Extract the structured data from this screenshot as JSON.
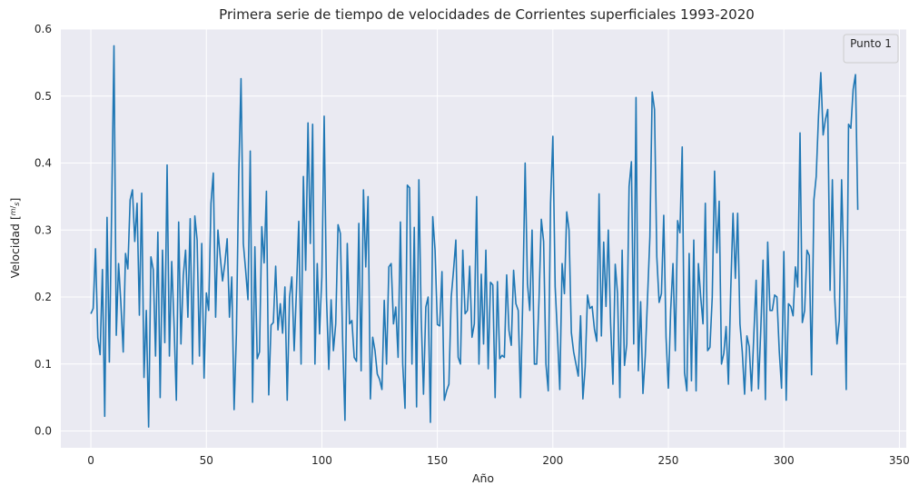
{
  "chart_data": {
    "type": "line",
    "title": "Primera serie de tiempo de velocidades de Corrientes superficiales 1993-2020",
    "xlabel": "Año",
    "ylabel": "Velocidad [m/s]",
    "ylabel_unit_num": "m",
    "ylabel_unit_den": "s",
    "xlim": [
      -13,
      353
    ],
    "ylim": [
      -0.025,
      0.6
    ],
    "xticks": [
      0,
      50,
      100,
      150,
      200,
      250,
      300,
      350
    ],
    "yticks": [
      0.0,
      0.1,
      0.2,
      0.3,
      0.4,
      0.5,
      0.6
    ],
    "xtick_labels": [
      "0",
      "50",
      "100",
      "150",
      "200",
      "250",
      "300",
      "350"
    ],
    "ytick_labels": [
      "0.0",
      "0.1",
      "0.2",
      "0.3",
      "0.4",
      "0.5",
      "0.6"
    ],
    "grid": true,
    "legend": {
      "placement": "top-right",
      "title": "Punto 1",
      "entries": []
    },
    "colors": {
      "line": "#1f77b4",
      "plot_bg": "#eaeaf2",
      "grid": "#ffffff"
    },
    "series": [
      {
        "x_start": 0,
        "x_step": 1,
        "values": [
          0.175,
          0.183,
          0.272,
          0.139,
          0.114,
          0.241,
          0.022,
          0.319,
          0.103,
          0.33,
          0.575,
          0.143,
          0.25,
          0.19,
          0.118,
          0.265,
          0.242,
          0.345,
          0.36,
          0.283,
          0.34,
          0.173,
          0.355,
          0.08,
          0.18,
          0.006,
          0.26,
          0.241,
          0.112,
          0.297,
          0.05,
          0.27,
          0.132,
          0.397,
          0.112,
          0.253,
          0.16,
          0.046,
          0.312,
          0.13,
          0.232,
          0.27,
          0.17,
          0.317,
          0.1,
          0.321,
          0.285,
          0.112,
          0.28,
          0.079,
          0.206,
          0.18,
          0.34,
          0.385,
          0.17,
          0.3,
          0.26,
          0.224,
          0.25,
          0.287,
          0.17,
          0.23,
          0.032,
          0.145,
          0.38,
          0.526,
          0.28,
          0.24,
          0.196,
          0.418,
          0.043,
          0.275,
          0.108,
          0.118,
          0.305,
          0.251,
          0.358,
          0.054,
          0.158,
          0.162,
          0.246,
          0.151,
          0.19,
          0.146,
          0.215,
          0.046,
          0.2,
          0.23,
          0.12,
          0.21,
          0.313,
          0.1,
          0.38,
          0.24,
          0.46,
          0.28,
          0.458,
          0.1,
          0.25,
          0.145,
          0.23,
          0.47,
          0.2,
          0.092,
          0.196,
          0.12,
          0.16,
          0.308,
          0.295,
          0.135,
          0.016,
          0.28,
          0.16,
          0.165,
          0.11,
          0.104,
          0.31,
          0.09,
          0.36,
          0.245,
          0.35,
          0.048,
          0.14,
          0.12,
          0.085,
          0.077,
          0.062,
          0.195,
          0.1,
          0.245,
          0.25,
          0.16,
          0.185,
          0.11,
          0.312,
          0.1,
          0.034,
          0.367,
          0.363,
          0.1,
          0.304,
          0.036,
          0.375,
          0.17,
          0.055,
          0.185,
          0.2,
          0.013,
          0.32,
          0.27,
          0.159,
          0.157,
          0.238,
          0.046,
          0.06,
          0.07,
          0.2,
          0.24,
          0.285,
          0.11,
          0.1,
          0.27,
          0.175,
          0.18,
          0.246,
          0.14,
          0.16,
          0.35,
          0.1,
          0.234,
          0.13,
          0.27,
          0.093,
          0.222,
          0.218,
          0.05,
          0.223,
          0.108,
          0.113,
          0.11,
          0.233,
          0.15,
          0.128,
          0.24,
          0.19,
          0.18,
          0.05,
          0.2,
          0.4,
          0.22,
          0.18,
          0.3,
          0.1,
          0.1,
          0.196,
          0.316,
          0.283,
          0.1,
          0.06,
          0.34,
          0.44,
          0.215,
          0.142,
          0.062,
          0.25,
          0.205,
          0.327,
          0.3,
          0.147,
          0.118,
          0.1,
          0.082,
          0.172,
          0.048,
          0.096,
          0.203,
          0.183,
          0.186,
          0.152,
          0.134,
          0.354,
          0.142,
          0.282,
          0.186,
          0.3,
          0.16,
          0.07,
          0.249,
          0.205,
          0.05,
          0.27,
          0.098,
          0.13,
          0.365,
          0.402,
          0.13,
          0.498,
          0.09,
          0.193,
          0.056,
          0.112,
          0.2,
          0.29,
          0.506,
          0.48,
          0.26,
          0.192,
          0.205,
          0.322,
          0.14,
          0.064,
          0.18,
          0.25,
          0.12,
          0.314,
          0.296,
          0.424,
          0.087,
          0.06,
          0.265,
          0.075,
          0.285,
          0.06,
          0.25,
          0.2,
          0.16,
          0.34,
          0.12,
          0.125,
          0.2,
          0.388,
          0.266,
          0.343,
          0.1,
          0.116,
          0.156,
          0.07,
          0.21,
          0.325,
          0.228,
          0.325,
          0.16,
          0.118,
          0.055,
          0.142,
          0.126,
          0.06,
          0.143,
          0.225,
          0.063,
          0.15,
          0.255,
          0.047,
          0.282,
          0.18,
          0.18,
          0.203,
          0.2,
          0.12,
          0.064,
          0.268,
          0.046,
          0.19,
          0.186,
          0.172,
          0.245,
          0.215,
          0.445,
          0.162,
          0.18,
          0.27,
          0.262,
          0.084,
          0.345,
          0.38,
          0.47,
          0.535,
          0.442,
          0.465,
          0.48,
          0.21,
          0.375,
          0.2,
          0.13,
          0.165,
          0.375,
          0.24,
          0.062,
          0.458,
          0.452,
          0.51,
          0.532,
          0.33
        ]
      }
    ]
  }
}
